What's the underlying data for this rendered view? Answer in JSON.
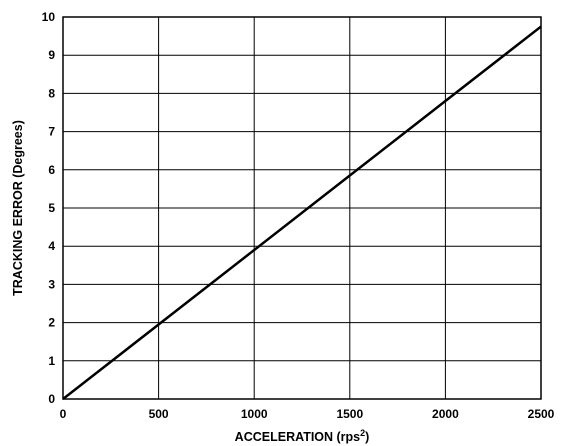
{
  "chart_data": {
    "type": "line",
    "title": "",
    "xlabel": "ACCELERATION (rps",
    "xlabel_superscript": "2",
    "xlabel_suffix": ")",
    "ylabel": "TRACKING ERROR (Degrees)",
    "xlim": [
      0,
      2500
    ],
    "ylim": [
      0,
      10
    ],
    "x_ticks": [
      "0",
      "500",
      "1000",
      "1500",
      "2000",
      "2500"
    ],
    "y_ticks": [
      "0",
      "1",
      "2",
      "3",
      "4",
      "5",
      "6",
      "7",
      "8",
      "9",
      "10"
    ],
    "grid": true,
    "legend": "none",
    "series": [
      {
        "x": [
          0,
          500,
          1000,
          1500,
          2000,
          2500
        ],
        "values": [
          0,
          1.95,
          3.9,
          5.85,
          7.8,
          9.75
        ]
      }
    ]
  }
}
